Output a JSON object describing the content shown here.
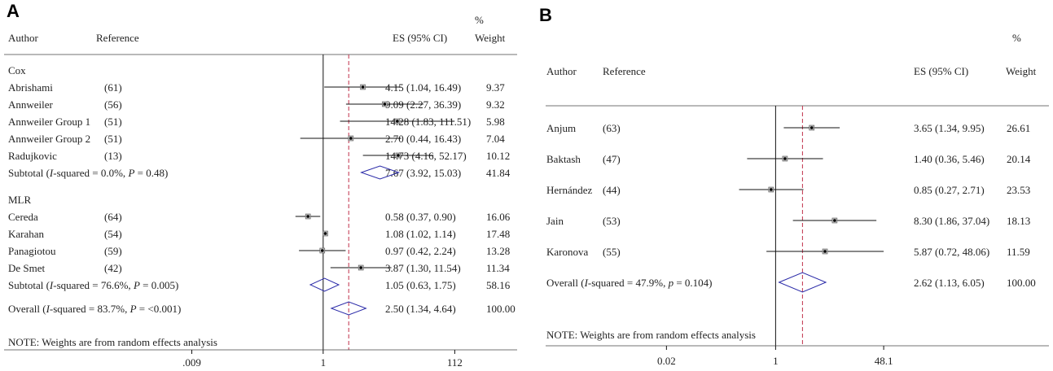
{
  "chart_data": [
    {
      "type": "forest",
      "panel_label": "A",
      "headers": {
        "author": "Author",
        "reference": "Reference",
        "es": "ES (95% CI)",
        "weight_pct": "%",
        "weight": "Weight"
      },
      "x_ticks": [
        ".009",
        "1",
        "112"
      ],
      "x_tick_values": [
        0.009,
        1,
        112
      ],
      "x_scale": "log",
      "note": "NOTE: Weights are from random effects analysis",
      "groups": [
        {
          "name": "Cox",
          "studies": [
            {
              "author": "Abrishami",
              "ref": "(61)",
              "es": 4.15,
              "lo": 1.04,
              "hi": 16.49,
              "ci_text": "4.15 (1.04, 16.49)",
              "weight": "9.37"
            },
            {
              "author": "Annweiler",
              "ref": "(56)",
              "es": 9.09,
              "lo": 2.27,
              "hi": 36.39,
              "ci_text": "9.09 (2.27, 36.39)",
              "weight": "9.32"
            },
            {
              "author": "Annweiler Group 1",
              "ref": "(51)",
              "es": 14.28,
              "lo": 1.83,
              "hi": 111.51,
              "ci_text": "14.28 (1.83, 111.51)",
              "weight": "5.98"
            },
            {
              "author": "Annweiler Group 2",
              "ref": "(51)",
              "es": 2.7,
              "lo": 0.44,
              "hi": 16.43,
              "ci_text": "2.70 (0.44, 16.43)",
              "weight": "7.04"
            },
            {
              "author": "Radujkovic",
              "ref": "(13)",
              "es": 14.73,
              "lo": 4.16,
              "hi": 52.17,
              "ci_text": "14.73 (4.16, 52.17)",
              "weight": "10.12"
            }
          ],
          "subtotal": {
            "label_prefix": "Subtotal  (",
            "i2_symbol": "I",
            "i2_text": "-squared = 0.0%, ",
            "p_symbol": "P",
            "p_text": " = 0.48)",
            "es": 7.67,
            "lo": 3.92,
            "hi": 15.03,
            "ci_text": "7.67 (3.92, 15.03)",
            "weight": "41.84"
          }
        },
        {
          "name": "MLR",
          "studies": [
            {
              "author": "Cereda",
              "ref": "(64)",
              "es": 0.58,
              "lo": 0.37,
              "hi": 0.9,
              "ci_text": "0.58 (0.37, 0.90)",
              "weight": "16.06"
            },
            {
              "author": "Karahan",
              "ref": "(54)",
              "es": 1.08,
              "lo": 1.02,
              "hi": 1.14,
              "ci_text": "1.08 (1.02, 1.14)",
              "weight": "17.48"
            },
            {
              "author": "Panagiotou",
              "ref": "(59)",
              "es": 0.97,
              "lo": 0.42,
              "hi": 2.24,
              "ci_text": "0.97 (0.42, 2.24)",
              "weight": "13.28"
            },
            {
              "author": "De Smet",
              "ref": "(42)",
              "es": 3.87,
              "lo": 1.3,
              "hi": 11.54,
              "ci_text": "3.87 (1.30, 11.54)",
              "weight": "11.34"
            }
          ],
          "subtotal": {
            "label_prefix": "Subtotal  (",
            "i2_symbol": "I",
            "i2_text": "-squared = 76.6%, ",
            "p_symbol": "P",
            "p_text": " = 0.005)",
            "es": 1.05,
            "lo": 0.63,
            "hi": 1.75,
            "ci_text": "1.05 (0.63, 1.75)",
            "weight": "58.16"
          }
        }
      ],
      "overall": {
        "label_prefix": "Overall  (",
        "i2_symbol": "I",
        "i2_text": "-squared = 83.7%, ",
        "p_symbol": "P",
        "p_text": " = <0.001)",
        "es": 2.5,
        "lo": 1.34,
        "hi": 4.64,
        "ci_text": "2.50 (1.34, 4.64)",
        "weight": "100.00"
      }
    },
    {
      "type": "forest",
      "panel_label": "B",
      "headers": {
        "author": "Author",
        "reference": "Reference",
        "es": "ES (95% CI)",
        "weight_pct": "%",
        "weight": "Weight"
      },
      "x_ticks": [
        "0.02",
        "1",
        "48.1"
      ],
      "x_tick_values": [
        0.02,
        1,
        48.1
      ],
      "x_scale": "log",
      "note": "NOTE: Weights are from random effects analysis",
      "studies": [
        {
          "author": "Anjum",
          "ref": "(63)",
          "es": 3.65,
          "lo": 1.34,
          "hi": 9.95,
          "ci_text": "3.65 (1.34, 9.95)",
          "weight": "26.61"
        },
        {
          "author": "Baktash",
          "ref": "(47)",
          "es": 1.4,
          "lo": 0.36,
          "hi": 5.46,
          "ci_text": "1.40 (0.36, 5.46)",
          "weight": "20.14"
        },
        {
          "author": "Hernández",
          "ref": "(44)",
          "es": 0.85,
          "lo": 0.27,
          "hi": 2.71,
          "ci_text": "0.85 (0.27, 2.71)",
          "weight": "23.53"
        },
        {
          "author": "Jain",
          "ref": "(53)",
          "es": 8.3,
          "lo": 1.86,
          "hi": 37.04,
          "ci_text": "8.30 (1.86, 37.04)",
          "weight": "18.13"
        },
        {
          "author": "Karonova",
          "ref": "(55)",
          "es": 5.87,
          "lo": 0.72,
          "hi": 48.06,
          "ci_text": "5.87 (0.72, 48.06)",
          "weight": "11.59"
        }
      ],
      "overall": {
        "label_prefix": "Overall  (",
        "i2_symbol": "I",
        "i2_text": "-squared = 47.9%, ",
        "p_symbol": "p",
        "p_text": " = 0.104)",
        "es": 2.62,
        "lo": 1.13,
        "hi": 6.05,
        "ci_text": "2.62 (1.13, 6.05)",
        "weight": "100.00"
      }
    }
  ],
  "colors": {
    "diamond": "#2a2aa8",
    "ref_line": "#c0304a",
    "axis": "#111111",
    "ci": "#111111"
  }
}
